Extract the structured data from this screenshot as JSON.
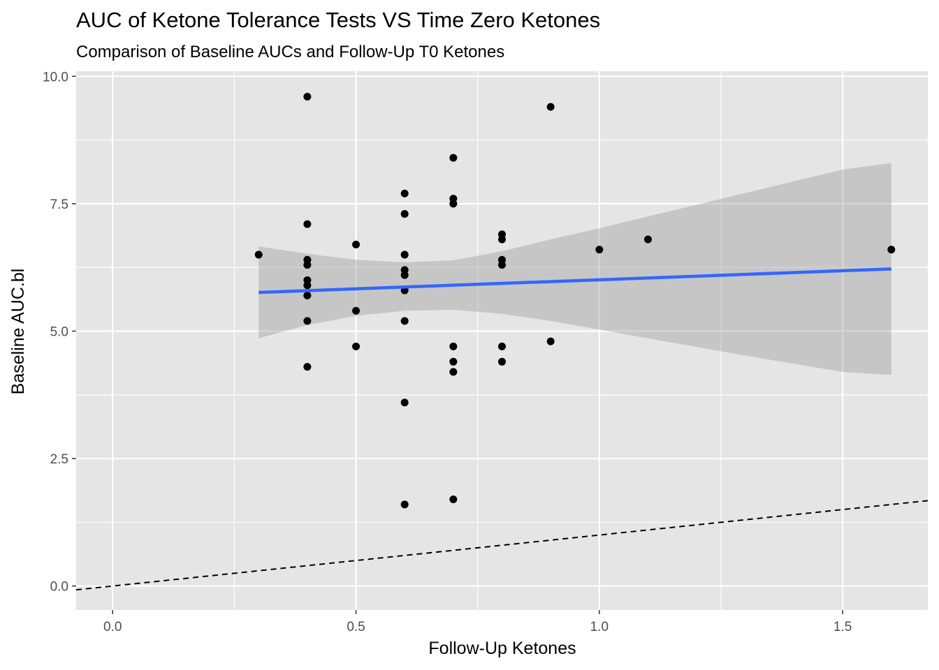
{
  "chart_data": {
    "type": "scatter",
    "title": "AUC of Ketone Tolerance Tests VS Time Zero Ketones",
    "subtitle": "Comparison of Baseline AUCs and Follow-Up T0 Ketones",
    "xlabel": "Follow-Up Ketones",
    "ylabel": "Baseline AUC.bl",
    "xlim": [
      -0.075,
      1.675
    ],
    "ylim": [
      -0.47,
      10.1
    ],
    "x_ticks": [
      0.0,
      0.5,
      1.0,
      1.5
    ],
    "x_tick_labels": [
      "0.0",
      "0.5",
      "1.0",
      "1.5"
    ],
    "y_ticks": [
      0.0,
      2.5,
      5.0,
      7.5,
      10.0
    ],
    "y_tick_labels": [
      "0.0",
      "2.5",
      "5.0",
      "7.5",
      "10.0"
    ],
    "grid": true,
    "background": "#e5e5e5",
    "point_color": "#000000",
    "points": [
      {
        "x": 0.3,
        "y": 6.5
      },
      {
        "x": 0.4,
        "y": 9.6
      },
      {
        "x": 0.4,
        "y": 7.1
      },
      {
        "x": 0.4,
        "y": 6.4
      },
      {
        "x": 0.4,
        "y": 6.3
      },
      {
        "x": 0.4,
        "y": 6.0
      },
      {
        "x": 0.4,
        "y": 5.9
      },
      {
        "x": 0.4,
        "y": 5.7
      },
      {
        "x": 0.4,
        "y": 5.2
      },
      {
        "x": 0.4,
        "y": 4.3
      },
      {
        "x": 0.5,
        "y": 6.7
      },
      {
        "x": 0.5,
        "y": 5.4
      },
      {
        "x": 0.5,
        "y": 4.7
      },
      {
        "x": 0.6,
        "y": 7.7
      },
      {
        "x": 0.6,
        "y": 7.3
      },
      {
        "x": 0.6,
        "y": 6.5
      },
      {
        "x": 0.6,
        "y": 6.2
      },
      {
        "x": 0.6,
        "y": 6.1
      },
      {
        "x": 0.6,
        "y": 5.8
      },
      {
        "x": 0.6,
        "y": 5.2
      },
      {
        "x": 0.6,
        "y": 3.6
      },
      {
        "x": 0.6,
        "y": 1.6
      },
      {
        "x": 0.7,
        "y": 8.4
      },
      {
        "x": 0.7,
        "y": 7.6
      },
      {
        "x": 0.7,
        "y": 7.5
      },
      {
        "x": 0.7,
        "y": 4.7
      },
      {
        "x": 0.7,
        "y": 4.4
      },
      {
        "x": 0.7,
        "y": 4.2
      },
      {
        "x": 0.7,
        "y": 1.7
      },
      {
        "x": 0.8,
        "y": 6.9
      },
      {
        "x": 0.8,
        "y": 6.8
      },
      {
        "x": 0.8,
        "y": 6.4
      },
      {
        "x": 0.8,
        "y": 6.3
      },
      {
        "x": 0.8,
        "y": 4.7
      },
      {
        "x": 0.8,
        "y": 4.4
      },
      {
        "x": 0.9,
        "y": 9.4
      },
      {
        "x": 0.9,
        "y": 4.8
      },
      {
        "x": 1.0,
        "y": 6.6
      },
      {
        "x": 1.1,
        "y": 6.8
      },
      {
        "x": 1.6,
        "y": 6.6
      }
    ],
    "regression_line": {
      "color": "#3366ff",
      "x": [
        0.3,
        1.6
      ],
      "y": [
        5.76,
        6.22
      ]
    },
    "confidence_band": {
      "color": "#999999",
      "x": [
        0.3,
        0.4,
        0.5,
        0.6,
        0.7,
        0.8,
        0.9,
        1.0,
        1.1,
        1.2,
        1.3,
        1.4,
        1.5,
        1.6
      ],
      "lower": [
        4.86,
        5.12,
        5.3,
        5.4,
        5.42,
        5.34,
        5.2,
        5.03,
        4.86,
        4.69,
        4.52,
        4.36,
        4.2,
        4.14
      ],
      "upper": [
        6.66,
        6.52,
        6.4,
        6.35,
        6.39,
        6.57,
        6.8,
        7.02,
        7.25,
        7.48,
        7.71,
        7.94,
        8.17,
        8.3
      ]
    },
    "reference_line": {
      "style": "dashed",
      "color": "#000000",
      "slope": 1,
      "intercept": 0
    }
  }
}
